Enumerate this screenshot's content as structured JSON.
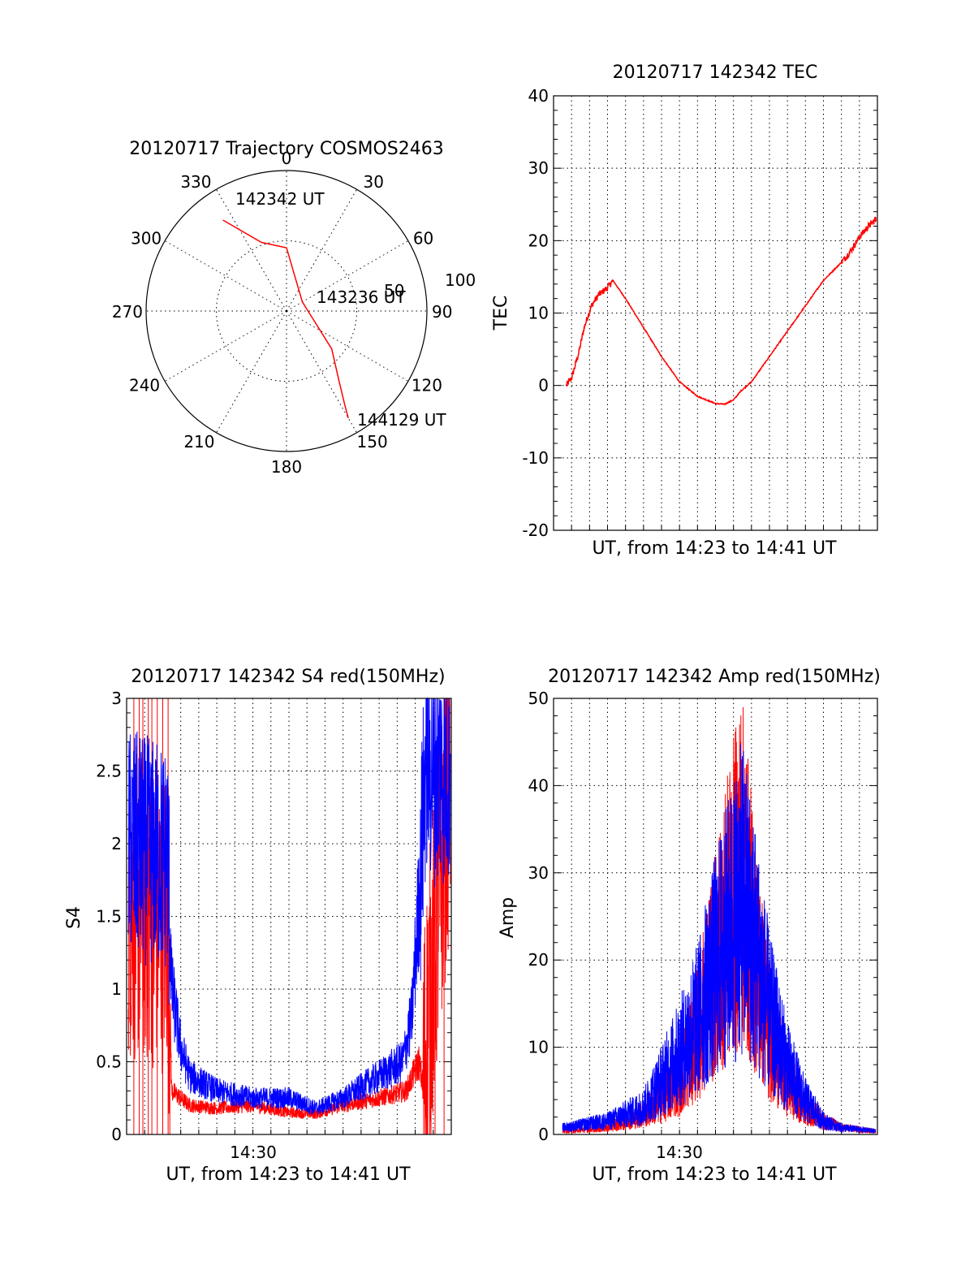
{
  "colors": {
    "red": "#ff0000",
    "blue": "#0000ff",
    "axis": "#000000"
  },
  "polar": {
    "title": "20120717 Trajectory COSMOS2463",
    "azimuth_labels": [
      "0",
      "30",
      "60",
      "90",
      "120",
      "150",
      "180",
      "210",
      "240",
      "270",
      "300",
      "330"
    ],
    "ring_labels": [
      "50",
      "100"
    ],
    "start_label": "142342 UT",
    "mid_label": "143236 UT",
    "end_label": "144129 UT"
  },
  "tec": {
    "title": "20120717 142342 TEC",
    "ylabel": "TEC",
    "xlabel": "UT, from 14:23 to 14:41 UT"
  },
  "s4": {
    "title": "20120717 142342 S4 red(150MHz)",
    "ylabel": "S4",
    "xlabel": "UT, from 14:23 to 14:41 UT",
    "xtick": "14:30"
  },
  "amp": {
    "title": "20120717 142342 Amp red(150MHz)",
    "ylabel": "Amp",
    "xlabel": "UT, from 14:23 to 14:41 UT",
    "xtick": "14:30"
  },
  "chart_data": [
    {
      "type": "scatter",
      "polar": true,
      "title": "20120717 Trajectory COSMOS2463",
      "theta_ticks": [
        0,
        30,
        60,
        90,
        120,
        150,
        180,
        210,
        240,
        270,
        300,
        330
      ],
      "r_ticks": [
        50,
        100
      ],
      "series": [
        {
          "color": "red",
          "points": [
            [
              325,
              79
            ],
            [
              340,
              52
            ],
            [
              0,
              45
            ],
            [
              60,
              13
            ],
            [
              130,
              42
            ],
            [
              143,
              62
            ],
            [
              148,
              78
            ],
            [
              150,
              88
            ]
          ]
        }
      ],
      "annotations": [
        "142342 UT",
        "143236 UT",
        "144129 UT"
      ]
    },
    {
      "type": "line",
      "title": "20120717 142342 TEC",
      "xlabel": "UT, from 14:23 to 14:41 UT",
      "ylabel": "TEC",
      "xlim": [
        0,
        18
      ],
      "ylim": [
        -20,
        40
      ],
      "yticks": [
        -20,
        -10,
        0,
        10,
        20,
        30,
        40
      ],
      "grid": true,
      "series": [
        {
          "color": "red",
          "x": [
            0.7,
            1.0,
            1.4,
            1.7,
            2.1,
            2.5,
            3.0,
            3.3,
            4.0,
            5.0,
            6.0,
            7.0,
            8.0,
            9.0,
            9.5,
            10.0,
            10.4,
            11.0,
            12.0,
            13.0,
            14.0,
            15.0,
            16.0,
            16.5,
            17.0,
            17.5,
            17.95
          ],
          "y": [
            0,
            1,
            4.5,
            8,
            11,
            12.5,
            13.5,
            14.5,
            12,
            8,
            4,
            0.5,
            -1.5,
            -2.5,
            -2.6,
            -2,
            -0.8,
            0.5,
            4,
            7.5,
            11,
            14.5,
            17,
            18.5,
            20.5,
            22,
            23
          ]
        }
      ]
    },
    {
      "type": "line",
      "title": "20120717 142342 S4 red(150MHz)",
      "xlabel": "UT, from 14:23 to 14:41 UT",
      "ylabel": "S4",
      "xlim": [
        0,
        18
      ],
      "ylim": [
        0,
        3
      ],
      "yticks": [
        0,
        0.5,
        1,
        1.5,
        2,
        2.5,
        3
      ],
      "xticks": [
        7
      ],
      "xticklabels": [
        "14:30"
      ],
      "grid": true,
      "series": [
        {
          "color": "red",
          "x": [
            0.1,
            2.3,
            2.5,
            3.5,
            5,
            7,
            9,
            10.5,
            12,
            14,
            15.5,
            16.2,
            16.4,
            18
          ],
          "y": [
            1.6,
            1.5,
            0.3,
            0.2,
            0.18,
            0.2,
            0.15,
            0.14,
            0.2,
            0.25,
            0.3,
            0.5,
            0.35,
            2.6
          ]
        },
        {
          "color": "blue",
          "x": [
            0.1,
            2.3,
            2.5,
            3.0,
            3.5,
            5,
            7,
            9,
            10.5,
            12,
            14,
            15.3,
            15.8,
            16.3,
            16.6,
            17,
            18
          ],
          "y": [
            2.0,
            1.9,
            1.0,
            0.6,
            0.4,
            0.3,
            0.25,
            0.25,
            0.18,
            0.25,
            0.4,
            0.5,
            0.8,
            1.8,
            2.6,
            2.5,
            2.5
          ]
        }
      ]
    },
    {
      "type": "line",
      "title": "20120717 142342 Amp red(150MHz)",
      "xlabel": "UT, from 14:23 to 14:41 UT",
      "ylabel": "Amp",
      "xlim": [
        0,
        18
      ],
      "ylim": [
        0,
        50
      ],
      "yticks": [
        0,
        10,
        20,
        30,
        40,
        50
      ],
      "xticks": [
        7
      ],
      "xticklabels": [
        "14:30"
      ],
      "grid": true,
      "series": [
        {
          "color": "red",
          "x": [
            0.5,
            3,
            5,
            6,
            7,
            8,
            9,
            10,
            10.5,
            11,
            12,
            13,
            14,
            15,
            16,
            17.9
          ],
          "y": [
            0.5,
            1,
            3,
            5,
            8,
            15,
            25,
            35,
            40,
            30,
            15,
            8,
            4,
            2,
            1,
            0.5
          ]
        },
        {
          "color": "blue",
          "x": [
            0.5,
            3,
            5,
            6,
            7,
            8,
            9,
            10,
            10.5,
            11,
            12,
            13,
            14,
            15,
            16,
            17.9
          ],
          "y": [
            1,
            2,
            4,
            8,
            12,
            17,
            25,
            32,
            35,
            30,
            18,
            10,
            5,
            2,
            1,
            0.5
          ]
        }
      ]
    }
  ]
}
